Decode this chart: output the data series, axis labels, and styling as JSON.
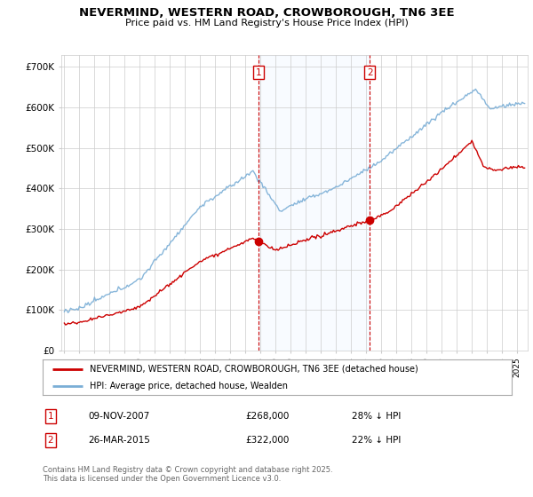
{
  "title": "NEVERMIND, WESTERN ROAD, CROWBOROUGH, TN6 3EE",
  "subtitle": "Price paid vs. HM Land Registry's House Price Index (HPI)",
  "ylim": [
    0,
    730000
  ],
  "yticks": [
    0,
    100000,
    200000,
    300000,
    400000,
    500000,
    600000,
    700000
  ],
  "ytick_labels": [
    "£0",
    "£100K",
    "£200K",
    "£300K",
    "£400K",
    "£500K",
    "£600K",
    "£700K"
  ],
  "legend_line1": "NEVERMIND, WESTERN ROAD, CROWBOROUGH, TN6 3EE (detached house)",
  "legend_line2": "HPI: Average price, detached house, Wealden",
  "event1_label": "1",
  "event1_date": "09-NOV-2007",
  "event1_price": "£268,000",
  "event1_pct": "28% ↓ HPI",
  "event1_x": 2007.86,
  "event1_y": 268000,
  "event2_label": "2",
  "event2_date": "26-MAR-2015",
  "event2_price": "£322,000",
  "event2_pct": "22% ↓ HPI",
  "event2_x": 2015.23,
  "event2_y": 322000,
  "footer": "Contains HM Land Registry data © Crown copyright and database right 2025.\nThis data is licensed under the Open Government Licence v3.0.",
  "line_color_property": "#cc0000",
  "line_color_hpi": "#7aaed6",
  "background_color": "#ffffff",
  "grid_color": "#cccccc",
  "shade_color": "#ddeeff",
  "event_box_color": "#cc0000",
  "xlim_left": 1994.8,
  "xlim_right": 2025.7
}
